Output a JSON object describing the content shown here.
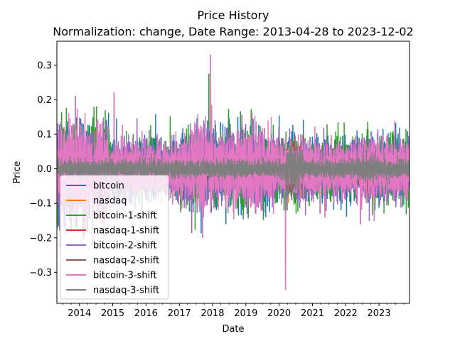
{
  "chart_data": {
    "type": "line",
    "title": "Price History",
    "subtitle": "Normalization: change, Date Range: 2013-04-28 to 2023-12-02",
    "xlabel": "Date",
    "ylabel": "Price",
    "x_range": [
      "2013-04-28",
      "2023-12-02"
    ],
    "ylim": [
      -0.39,
      0.37
    ],
    "x_ticks": [
      "2014",
      "2015",
      "2016",
      "2017",
      "2018",
      "2019",
      "2020",
      "2021",
      "2022",
      "2023"
    ],
    "y_ticks": [
      {
        "value": -0.3,
        "label": "−0.3"
      },
      {
        "value": -0.2,
        "label": "−0.2"
      },
      {
        "value": -0.1,
        "label": "−0.1"
      },
      {
        "value": 0.0,
        "label": "0.0"
      },
      {
        "value": 0.1,
        "label": "0.1"
      },
      {
        "value": 0.2,
        "label": "0.2"
      },
      {
        "value": 0.3,
        "label": "0.3"
      }
    ],
    "grid": false,
    "legend_position": "lower-left",
    "series": [
      {
        "name": "bitcoin",
        "color": "#1f77b4",
        "kind": "bitcoin",
        "amp": 0.045
      },
      {
        "name": "nasdaq",
        "color": "#ff7f0e",
        "kind": "nasdaq",
        "amp": 0.012
      },
      {
        "name": "bitcoin-1-shift",
        "color": "#2ca02c",
        "kind": "bitcoin",
        "amp": 0.045
      },
      {
        "name": "nasdaq-1-shift",
        "color": "#d62728",
        "kind": "nasdaq",
        "amp": 0.012
      },
      {
        "name": "bitcoin-2-shift",
        "color": "#9467bd",
        "kind": "bitcoin",
        "amp": 0.045
      },
      {
        "name": "nasdaq-2-shift",
        "color": "#8c564b",
        "kind": "nasdaq",
        "amp": 0.012
      },
      {
        "name": "bitcoin-3-shift",
        "color": "#e377c2",
        "kind": "bitcoin",
        "amp": 0.045
      },
      {
        "name": "nasdaq-3-shift",
        "color": "#7f7f7f",
        "kind": "nasdaq",
        "amp": 0.012
      }
    ],
    "notable_values": [
      {
        "date": "2013-11-18",
        "value": 0.21
      },
      {
        "date": "2015-01-15",
        "value": 0.22
      },
      {
        "date": "2017-12-07",
        "value": 0.33
      },
      {
        "date": "2017-09-15",
        "value": -0.2
      },
      {
        "date": "2020-03-12",
        "value": -0.35
      },
      {
        "date": "2014-02-25",
        "value": -0.17
      },
      {
        "date": "2021-05-19",
        "value": -0.14
      },
      {
        "date": "2022-06-13",
        "value": -0.16
      },
      {
        "date": "2022-11-09",
        "value": -0.15
      }
    ]
  }
}
